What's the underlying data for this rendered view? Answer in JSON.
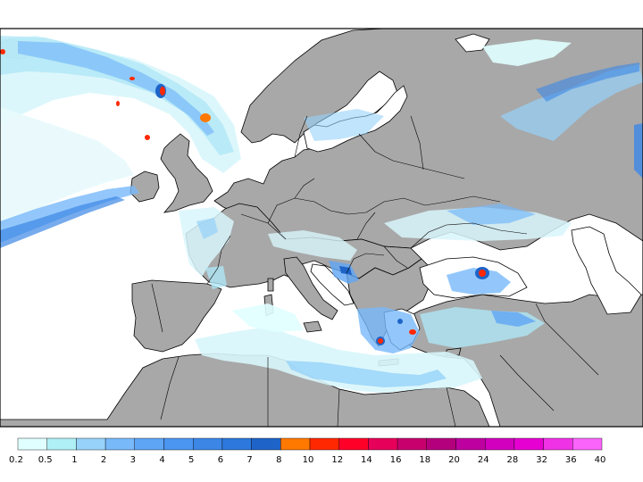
{
  "map": {
    "land_color": "#a8a8a8",
    "sea_color": "#ffffff",
    "border_color": "#000000"
  },
  "legend": {
    "thresholds": [
      "0.2",
      "0.5",
      "1",
      "2",
      "3",
      "4",
      "5",
      "6",
      "7",
      "8",
      "10",
      "12",
      "14",
      "16",
      "18",
      "20",
      "24",
      "28",
      "32",
      "36",
      "40"
    ],
    "colors": [
      "#e0ffff",
      "#aef0f5",
      "#96d2fa",
      "#78b9fa",
      "#5fa5f5",
      "#4b96f0",
      "#3c87e6",
      "#2d78dc",
      "#1e64c8",
      "#ff7800",
      "#ff2800",
      "#ff0028",
      "#e6005a",
      "#c8006e",
      "#b4007d",
      "#be00a0",
      "#d200be",
      "#e600d2",
      "#f032e6",
      "#fa64fa"
    ]
  }
}
